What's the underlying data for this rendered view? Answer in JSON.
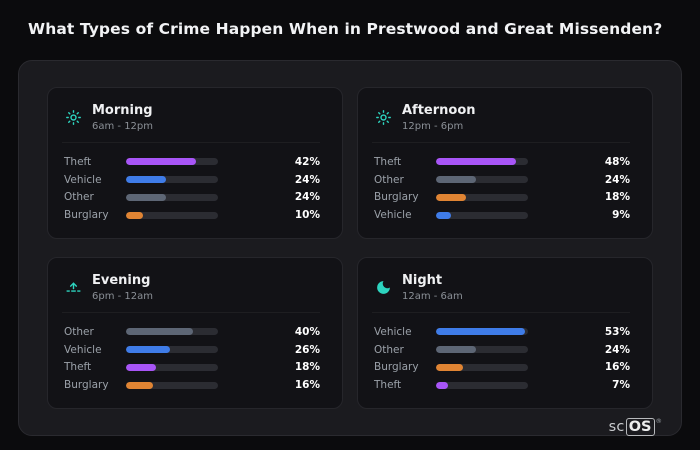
{
  "title": "What Types of Crime Happen When in Prestwood and Great Missenden?",
  "colors": {
    "icon": "#2dd4bf",
    "track": "#2b2c32",
    "panel_bg": "#1b1b1f",
    "card_bg": "#121216",
    "page_bg": "#0b0b0d"
  },
  "category_colors": {
    "Theft": "#a855f7",
    "Vehicle": "#3f7ce8",
    "Other": "#5d6675",
    "Burglary": "#e08433"
  },
  "chart_data": [
    {
      "type": "bar",
      "orientation": "horizontal",
      "title": "Morning",
      "subtitle": "6am - 12pm",
      "icon": "sun-icon",
      "categories": [
        "Theft",
        "Vehicle",
        "Other",
        "Burglary"
      ],
      "values": [
        42,
        24,
        24,
        10
      ],
      "unit": "%",
      "xlim": [
        0,
        55
      ],
      "grid": false,
      "legend": false
    },
    {
      "type": "bar",
      "orientation": "horizontal",
      "title": "Afternoon",
      "subtitle": "12pm - 6pm",
      "icon": "sun-icon",
      "categories": [
        "Theft",
        "Other",
        "Burglary",
        "Vehicle"
      ],
      "values": [
        48,
        24,
        18,
        9
      ],
      "unit": "%",
      "xlim": [
        0,
        55
      ],
      "grid": false,
      "legend": false
    },
    {
      "type": "bar",
      "orientation": "horizontal",
      "title": "Evening",
      "subtitle": "6pm - 12am",
      "icon": "sunset-icon",
      "categories": [
        "Other",
        "Vehicle",
        "Theft",
        "Burglary"
      ],
      "values": [
        40,
        26,
        18,
        16
      ],
      "unit": "%",
      "xlim": [
        0,
        55
      ],
      "grid": false,
      "legend": false
    },
    {
      "type": "bar",
      "orientation": "horizontal",
      "title": "Night",
      "subtitle": "12am - 6am",
      "icon": "moon-icon",
      "categories": [
        "Vehicle",
        "Other",
        "Burglary",
        "Theft"
      ],
      "values": [
        53,
        24,
        16,
        7
      ],
      "unit": "%",
      "xlim": [
        0,
        55
      ],
      "grid": false,
      "legend": false
    }
  ],
  "logo": {
    "prefix": "sc",
    "boxed": "OS",
    "registered": "®"
  }
}
